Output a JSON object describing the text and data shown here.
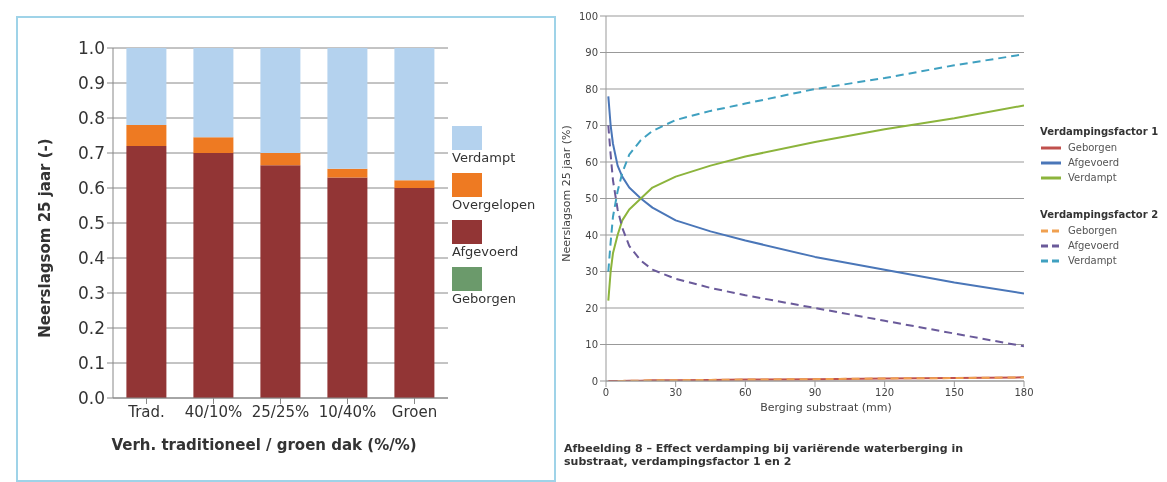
{
  "chart_data": [
    {
      "type": "bar",
      "stacked": true,
      "xlabel": "Verh. traditioneel / groen dak (%/%)",
      "ylabel": "Neerslagsom 25 jaar (-)",
      "categories": [
        "Trad.",
        "40/10%",
        "25/25%",
        "10/40%",
        "Groen"
      ],
      "series": [
        {
          "name": "Geborgen",
          "color": "#6b9a6b",
          "values": [
            0,
            0,
            0,
            0,
            0
          ]
        },
        {
          "name": "Afgevoerd",
          "color": "#923535",
          "values": [
            0.72,
            0.7,
            0.665,
            0.63,
            0.6
          ]
        },
        {
          "name": "Overgelopen",
          "color": "#ee7a22",
          "values": [
            0.06,
            0.045,
            0.035,
            0.025,
            0.022
          ]
        },
        {
          "name": "Verdampt",
          "color": "#b4d2ee",
          "values": [
            0.22,
            0.255,
            0.3,
            0.345,
            0.378
          ]
        }
      ],
      "ylim": [
        0,
        1
      ],
      "yticks": [
        {
          "value": 0,
          "label": "0.0"
        },
        0.1,
        0.2,
        0.3,
        0.4,
        0.5,
        0.6,
        0.7,
        0.8,
        0.9,
        {
          "value": 1,
          "label": "1.0"
        }
      ],
      "grid": "y",
      "legend": "right"
    },
    {
      "type": "line",
      "xlabel": "Berging substraat (mm)",
      "ylabel": "Neerslagsom 25 jaar (%)",
      "annotations": [
        "Verdampingsfactor 1",
        "Verdampingsfactor 2",
        "Afbeelding 8 – Effect verdamping bij variërende waterberging in substraat, verdampingsfactor 1 en 2"
      ],
      "x": [
        1,
        2,
        3,
        5,
        7,
        10,
        15,
        20,
        30,
        45,
        60,
        90,
        120,
        150,
        180
      ],
      "series": [
        {
          "name": "Geborgen",
          "color": "#c0504d",
          "line_style": "solid",
          "values": [
            0,
            0,
            0,
            0,
            0,
            0.1,
            0.1,
            0.2,
            0.2,
            0.3,
            0.4,
            0.5,
            0.7,
            0.8,
            1.0
          ]
        },
        {
          "name": "Afgevoerd",
          "color": "#4a76b8",
          "line_style": "solid",
          "values": [
            78,
            70,
            65,
            59,
            56,
            53,
            50,
            47.5,
            44,
            41,
            38.5,
            34,
            30.5,
            27,
            24
          ]
        },
        {
          "name": "Verdampt",
          "color": "#8cb43c",
          "line_style": "solid",
          "values": [
            22,
            30,
            35,
            40,
            44,
            47,
            50,
            53,
            56,
            59,
            61.5,
            65.5,
            69,
            72,
            75.5
          ]
        },
        {
          "name": "Geborgen",
          "color": "#f0a050",
          "line_style": "dashed",
          "values": [
            null,
            null,
            null,
            0,
            0,
            0.1,
            0.1,
            0.2,
            0.2,
            0.3,
            0.4,
            0.5,
            0.7,
            0.8,
            1.0
          ]
        },
        {
          "name": "Afgevoerd",
          "color": "#6a5a9a",
          "line_style": "dashed",
          "values": [
            70,
            62,
            55,
            47,
            42,
            37,
            33,
            30.5,
            28,
            25.5,
            23.5,
            20,
            16.5,
            13,
            9.5
          ]
        },
        {
          "name": "Verdampt",
          "color": "#3fa0c0",
          "line_style": "dashed",
          "values": [
            30,
            38,
            45,
            52,
            57,
            62,
            66,
            68.5,
            71.5,
            74,
            76,
            80,
            83,
            86.5,
            89.5
          ]
        }
      ],
      "xlim": [
        0,
        180
      ],
      "xticks": [
        0,
        30,
        60,
        90,
        120,
        150,
        180
      ],
      "ylim": [
        0,
        100
      ],
      "yticks": [
        0,
        10,
        20,
        30,
        40,
        50,
        60,
        70,
        80,
        90,
        100
      ],
      "grid": "y",
      "legend": "right",
      "marker": "none"
    }
  ]
}
